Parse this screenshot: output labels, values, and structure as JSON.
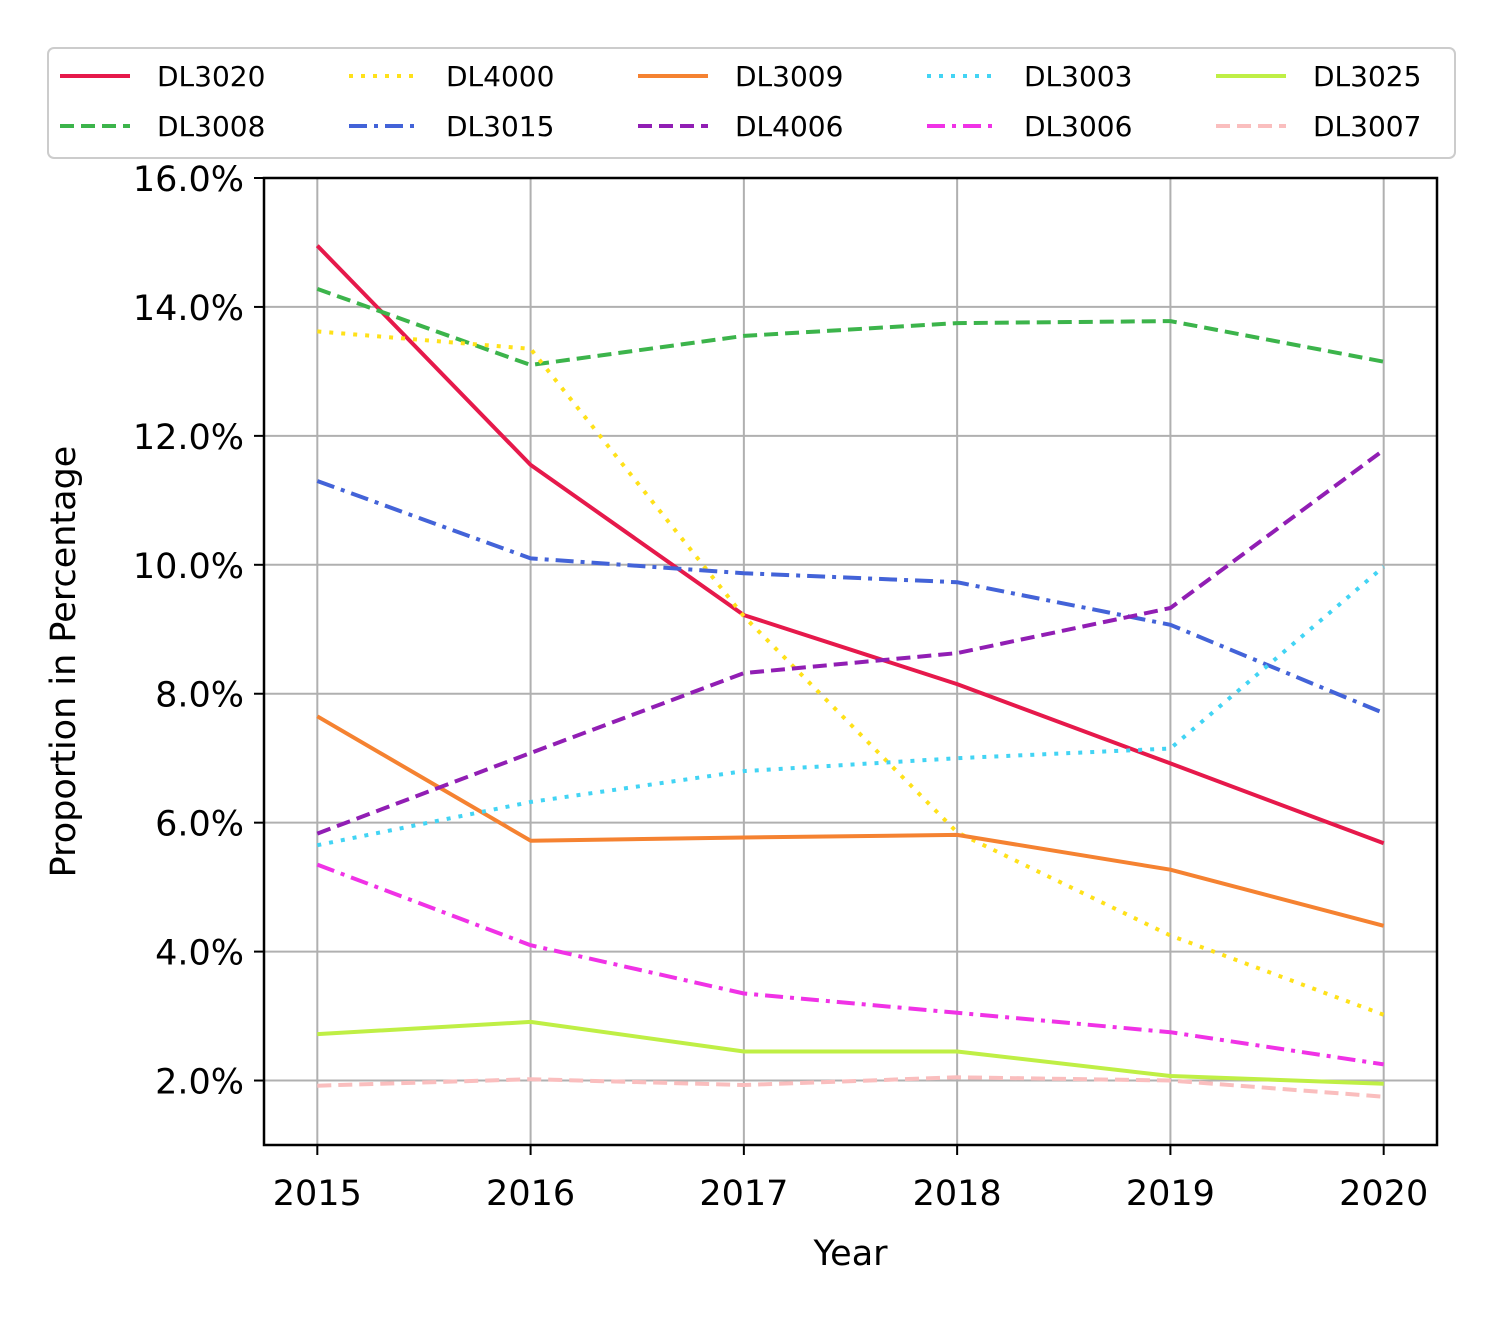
{
  "chart_data": {
    "type": "line",
    "xlabel": "Year",
    "ylabel": "Proportion in Percentage",
    "x": [
      2015,
      2016,
      2017,
      2018,
      2019,
      2020
    ],
    "xlim": [
      2014.75,
      2020.25
    ],
    "ylim": [
      1.0,
      16.0
    ],
    "yticks": [
      2.0,
      4.0,
      6.0,
      8.0,
      10.0,
      12.0,
      14.0,
      16.0
    ],
    "ytick_labels": [
      "2.0%",
      "4.0%",
      "6.0%",
      "8.0%",
      "10.0%",
      "12.0%",
      "14.0%",
      "16.0%"
    ],
    "xtick_labels": [
      "2015",
      "2016",
      "2017",
      "2018",
      "2019",
      "2020"
    ],
    "grid": true,
    "legend_placement": "top, above plot, 5 columns",
    "series": [
      {
        "name": "DL3020",
        "color": "#e6194b",
        "style": "solid",
        "values": [
          14.95,
          11.55,
          9.22,
          8.15,
          6.92,
          5.68
        ]
      },
      {
        "name": "DL3008",
        "color": "#3cb44b",
        "style": "dashed",
        "values": [
          14.28,
          13.1,
          13.55,
          13.75,
          13.78,
          13.15
        ]
      },
      {
        "name": "DL4000",
        "color": "#ffe119",
        "style": "dotted",
        "values": [
          13.62,
          13.35,
          9.2,
          5.85,
          4.25,
          3.02
        ]
      },
      {
        "name": "DL3015",
        "color": "#4363d8",
        "style": "dashdot",
        "values": [
          11.3,
          10.1,
          9.87,
          9.73,
          9.07,
          7.7
        ]
      },
      {
        "name": "DL3009",
        "color": "#f58231",
        "style": "solid",
        "values": [
          7.65,
          5.72,
          5.77,
          5.81,
          5.27,
          4.4
        ]
      },
      {
        "name": "DL4006",
        "color": "#911eb4",
        "style": "dashed",
        "values": [
          5.83,
          7.08,
          8.32,
          8.63,
          9.33,
          11.78
        ]
      },
      {
        "name": "DL3003",
        "color": "#42d4f4",
        "style": "dotted",
        "values": [
          5.65,
          6.32,
          6.8,
          7.0,
          7.15,
          9.97
        ]
      },
      {
        "name": "DL3006",
        "color": "#f032e6",
        "style": "dashdot",
        "values": [
          5.35,
          4.1,
          3.35,
          3.05,
          2.75,
          2.25
        ]
      },
      {
        "name": "DL3025",
        "color": "#bfef45",
        "style": "solid",
        "values": [
          2.72,
          2.91,
          2.45,
          2.45,
          2.07,
          1.95
        ]
      },
      {
        "name": "DL3007",
        "color": "#fabebe",
        "style": "dashed",
        "values": [
          1.92,
          2.02,
          1.93,
          2.05,
          2.0,
          1.75
        ]
      }
    ]
  }
}
